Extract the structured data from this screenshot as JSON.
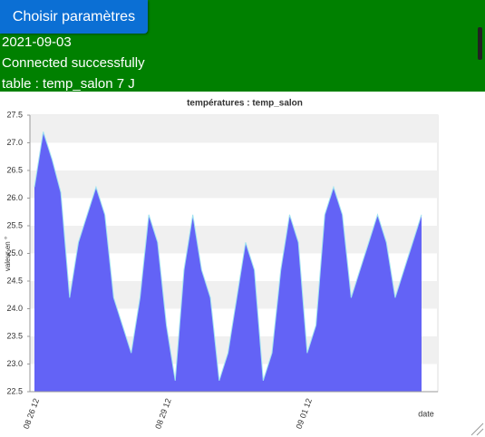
{
  "header": {
    "button": "Choisir paramètres",
    "date": "2021-09-03",
    "status": "Connected successfully",
    "table": "table : temp_salon 7 J"
  },
  "chart_data": {
    "type": "area",
    "title": "températures : temp_salon",
    "x_label": "date",
    "y_label": "valeur en °",
    "color": "#5b5bf5",
    "line_color": "#9fe3f0",
    "categories": [
      "08 26 12",
      null,
      null,
      null,
      null,
      null,
      null,
      null,
      null,
      null,
      null,
      null,
      null,
      null,
      null,
      "08 29 12",
      null,
      null,
      null,
      null,
      null,
      null,
      null,
      null,
      null,
      null,
      null,
      null,
      null,
      null,
      null,
      "09 01 12",
      null,
      null,
      null,
      null,
      null,
      null,
      null,
      null,
      null,
      null,
      null,
      null,
      null
    ],
    "values": [
      26.2,
      27.2,
      26.7,
      26.1,
      24.2,
      25.2,
      25.7,
      26.2,
      25.7,
      24.2,
      23.7,
      23.2,
      24.2,
      25.7,
      25.2,
      23.7,
      22.7,
      24.7,
      25.7,
      24.7,
      24.2,
      22.7,
      23.2,
      24.2,
      25.2,
      24.7,
      22.7,
      23.2,
      24.7,
      25.7,
      25.2,
      23.2,
      23.7,
      25.7,
      26.2,
      25.7,
      24.2,
      24.7,
      25.2,
      25.7,
      25.2,
      24.2,
      24.7,
      25.2,
      25.7
    ],
    "ylim": [
      22.5,
      27.5
    ],
    "yticks": [
      {
        "value": 22.5,
        "label": "22.5"
      },
      {
        "value": 23,
        "label": "23.0"
      },
      {
        "value": 23.5,
        "label": "23.5"
      },
      {
        "value": 24,
        "label": "24.0"
      },
      {
        "value": 24.5,
        "label": "24.5"
      },
      {
        "value": 25,
        "label": "25.0"
      },
      {
        "value": 25.5,
        "label": "25.5"
      },
      {
        "value": 26,
        "label": "26.0"
      },
      {
        "value": 26.5,
        "label": "26.5"
      },
      {
        "value": 27,
        "label": "27.0"
      },
      {
        "value": 27.5,
        "label": "27.5"
      }
    ],
    "grid": true
  }
}
